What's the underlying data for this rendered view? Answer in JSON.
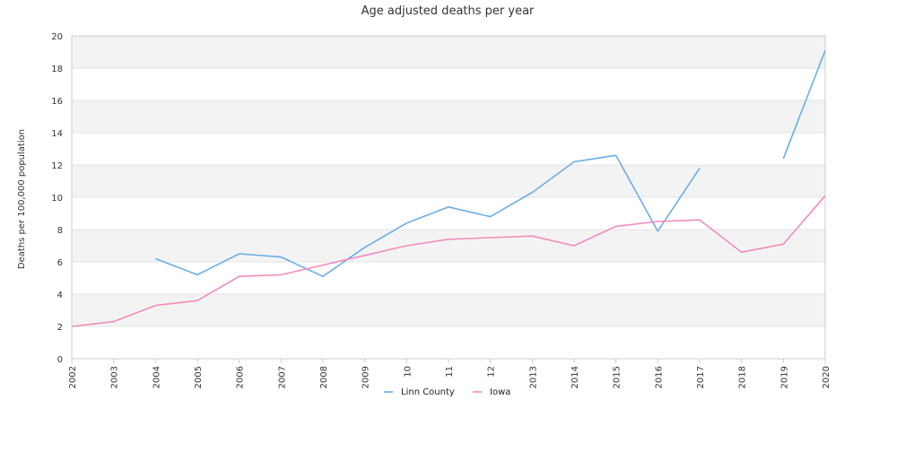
{
  "chart_data": {
    "type": "line",
    "title": "Age adjusted deaths per year",
    "xlabel": "",
    "ylabel": "Deaths per 100,000 population",
    "categories": [
      "2002",
      "2003",
      "2004",
      "2005",
      "2006",
      "2007",
      "2008",
      "2009",
      "10",
      "11",
      "12",
      "2013",
      "2014",
      "2015",
      "2016",
      "2017",
      "2018",
      "2019",
      "2020"
    ],
    "ylim": [
      0,
      20
    ],
    "yticks": [
      0,
      2,
      4,
      6,
      8,
      10,
      12,
      14,
      16,
      18,
      20
    ],
    "grid": true,
    "legend_position": "bottom-center",
    "series": [
      {
        "name": "Linn County",
        "color": "#6aaee8",
        "values": [
          null,
          null,
          6.2,
          5.2,
          6.5,
          6.3,
          5.1,
          6.9,
          8.4,
          9.4,
          8.8,
          10.3,
          12.2,
          12.6,
          7.9,
          11.8,
          null,
          12.4,
          19.1
        ]
      },
      {
        "name": "Iowa",
        "color": "#f28cbd",
        "values": [
          2.0,
          2.3,
          3.3,
          3.6,
          5.1,
          5.2,
          5.8,
          6.4,
          7.0,
          7.4,
          7.5,
          7.6,
          7.0,
          8.2,
          8.5,
          8.6,
          6.6,
          7.1,
          10.1
        ]
      }
    ],
    "band_colors": [
      "#f3f3f3",
      "#ffffff"
    ],
    "axis_color": "#cccccc",
    "text_color": "#333333"
  }
}
